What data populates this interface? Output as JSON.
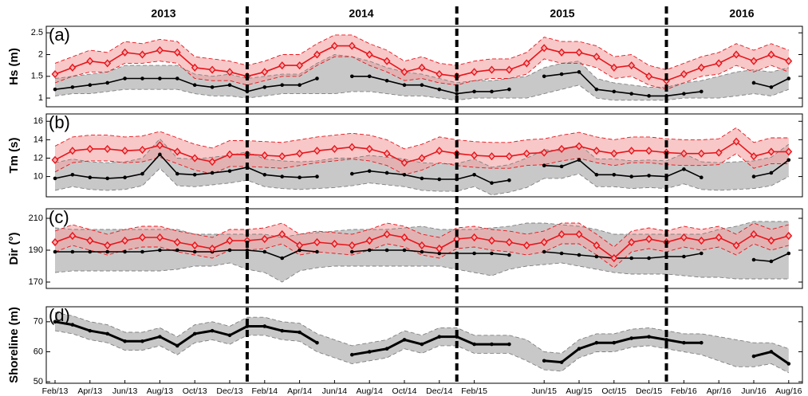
{
  "year_labels": [
    "2013",
    "2014",
    "2015",
    "2016"
  ],
  "chart_data": [
    {
      "type": "line",
      "ylabel": "Hs (m)",
      "panel_label": "(a)",
      "ylim": [
        0.8,
        2.65
      ],
      "yticks": [
        1,
        1.5,
        2,
        2.5
      ],
      "series": [
        {
          "color": "#808080",
          "band_color": "#c8c8c8",
          "marker": "circle",
          "line_color": "#000000",
          "values": [
            1.2,
            1.25,
            1.3,
            1.35,
            1.45,
            1.45,
            1.45,
            1.45,
            1.3,
            1.25,
            1.3,
            1.15,
            1.25,
            1.3,
            1.3,
            1.45,
            null,
            1.5,
            1.5,
            1.4,
            1.3,
            1.3,
            1.2,
            1.1,
            1.15,
            1.15,
            1.2,
            null,
            1.5,
            1.55,
            1.6,
            1.2,
            1.15,
            1.1,
            1.05,
            1.05,
            1.1,
            1.15,
            null,
            null,
            1.35,
            1.25,
            1.45
          ],
          "lower": [
            1.05,
            1.1,
            1.1,
            1.15,
            1.2,
            1.2,
            1.2,
            1.2,
            1.1,
            1.05,
            1.05,
            1.0,
            1.05,
            1.1,
            1.1,
            1.1,
            1.1,
            1.15,
            1.15,
            1.1,
            1.05,
            1.05,
            1.0,
            0.95,
            1.0,
            1.0,
            1.0,
            1.0,
            1.1,
            1.2,
            1.3,
            1.0,
            0.95,
            0.95,
            0.95,
            0.95,
            1.0,
            1.0,
            1.0,
            1.05,
            1.1,
            1.05,
            1.2
          ],
          "upper": [
            1.45,
            1.5,
            1.55,
            1.6,
            1.75,
            1.75,
            1.75,
            1.75,
            1.55,
            1.5,
            1.55,
            1.45,
            1.5,
            1.55,
            1.55,
            1.8,
            2.0,
            1.95,
            1.85,
            1.7,
            1.6,
            1.55,
            1.45,
            1.35,
            1.4,
            1.4,
            1.45,
            1.5,
            1.7,
            1.8,
            1.85,
            1.45,
            1.35,
            1.3,
            1.25,
            1.25,
            1.35,
            1.4,
            1.5,
            1.6,
            1.65,
            1.6,
            1.7
          ]
        },
        {
          "color": "#e8141b",
          "band_color": "#f4a3a3",
          "marker": "diamond",
          "line_color": "#e8141b",
          "values": [
            1.55,
            1.7,
            1.85,
            1.8,
            2.05,
            2.0,
            2.1,
            2.05,
            1.7,
            1.65,
            1.6,
            1.5,
            1.6,
            1.75,
            1.75,
            2.0,
            2.2,
            2.2,
            2.0,
            1.85,
            1.6,
            1.7,
            1.55,
            1.5,
            1.6,
            1.65,
            1.65,
            1.8,
            2.15,
            2.05,
            2.05,
            1.95,
            1.7,
            1.75,
            1.5,
            1.4,
            1.55,
            1.7,
            1.8,
            2.0,
            1.85,
            2.0,
            1.85
          ],
          "lower": [
            1.35,
            1.5,
            1.6,
            1.6,
            1.8,
            1.8,
            1.85,
            1.8,
            1.45,
            1.4,
            1.4,
            1.3,
            1.4,
            1.5,
            1.5,
            1.75,
            1.95,
            1.95,
            1.75,
            1.6,
            1.4,
            1.45,
            1.35,
            1.3,
            1.4,
            1.45,
            1.45,
            1.55,
            1.9,
            1.8,
            1.8,
            1.7,
            1.45,
            1.5,
            1.3,
            1.2,
            1.35,
            1.5,
            1.55,
            1.75,
            1.6,
            1.75,
            1.6
          ],
          "upper": [
            1.8,
            1.95,
            2.1,
            2.05,
            2.3,
            2.25,
            2.35,
            2.3,
            1.95,
            1.9,
            1.85,
            1.75,
            1.85,
            2.0,
            2.0,
            2.25,
            2.45,
            2.45,
            2.25,
            2.1,
            1.85,
            1.95,
            1.8,
            1.75,
            1.85,
            1.9,
            1.9,
            2.05,
            2.4,
            2.3,
            2.3,
            2.2,
            1.95,
            2.0,
            1.75,
            1.65,
            1.8,
            1.95,
            2.05,
            2.25,
            2.1,
            2.25,
            2.1
          ]
        }
      ]
    },
    {
      "type": "line",
      "ylabel": "Tm (s)",
      "panel_label": "(b)",
      "ylim": [
        7.8,
        16.8
      ],
      "yticks": [
        10,
        12,
        14,
        16
      ],
      "series": [
        {
          "color": "#808080",
          "band_color": "#c8c8c8",
          "marker": "circle",
          "line_color": "#000000",
          "values": [
            9.8,
            10.2,
            9.9,
            9.8,
            9.9,
            10.3,
            12.4,
            10.3,
            10.2,
            10.4,
            10.6,
            11.0,
            10.2,
            10.0,
            9.9,
            10.0,
            null,
            10.3,
            10.6,
            10.4,
            10.2,
            9.8,
            9.7,
            9.7,
            10.2,
            9.3,
            9.6,
            null,
            11.2,
            11.1,
            11.8,
            10.2,
            10.2,
            10.0,
            10.1,
            10.0,
            10.8,
            9.9,
            null,
            null,
            10.0,
            10.4,
            11.8
          ],
          "lower": [
            8.5,
            8.9,
            8.6,
            8.5,
            8.6,
            9.0,
            10.9,
            9.0,
            8.9,
            9.1,
            9.3,
            9.6,
            8.9,
            8.7,
            8.6,
            8.7,
            8.8,
            9.0,
            9.3,
            9.1,
            8.9,
            8.5,
            8.4,
            8.4,
            8.9,
            8.0,
            8.3,
            8.8,
            9.8,
            9.8,
            10.3,
            8.9,
            8.9,
            8.7,
            8.8,
            8.7,
            9.2,
            8.6,
            8.5,
            8.6,
            8.7,
            9.0,
            10.0
          ],
          "upper": [
            11.5,
            11.9,
            11.6,
            11.5,
            11.6,
            12.0,
            14.1,
            12.0,
            11.9,
            12.1,
            12.3,
            12.7,
            11.9,
            11.7,
            11.6,
            11.7,
            12.0,
            12.0,
            12.3,
            12.1,
            11.9,
            11.5,
            11.4,
            11.4,
            11.9,
            11.0,
            11.3,
            12.0,
            12.9,
            12.8,
            13.5,
            11.9,
            11.9,
            11.7,
            11.8,
            11.7,
            12.5,
            11.6,
            11.5,
            11.6,
            11.7,
            12.1,
            13.5
          ]
        },
        {
          "color": "#e8141b",
          "band_color": "#f4a3a3",
          "marker": "diamond",
          "line_color": "#e8141b",
          "values": [
            11.8,
            12.8,
            13,
            13,
            12.8,
            12.9,
            13.4,
            12.7,
            12,
            11.6,
            12.4,
            12.4,
            12.3,
            12.2,
            12.5,
            12.8,
            13,
            13.2,
            13,
            12.5,
            11.5,
            12,
            12.8,
            12.5,
            12.3,
            12.2,
            12.2,
            12.5,
            12.6,
            13,
            13.3,
            12.8,
            12.5,
            12.8,
            12.8,
            12.6,
            12.5,
            12.5,
            12.6,
            13.8,
            12.2,
            12.7,
            12.7
          ],
          "lower": [
            10.5,
            11.5,
            11.7,
            11.7,
            11.5,
            11.6,
            12.1,
            11.4,
            10.7,
            10.3,
            11.1,
            11.1,
            11.0,
            10.9,
            11.2,
            11.5,
            11.7,
            11.9,
            11.7,
            11.2,
            10.2,
            10.7,
            11.5,
            11.2,
            11.0,
            10.9,
            10.9,
            11.2,
            11.3,
            11.7,
            12.0,
            11.5,
            11.2,
            11.5,
            11.5,
            11.3,
            11.2,
            11.2,
            11.3,
            12.5,
            10.9,
            11.4,
            11.4
          ],
          "upper": [
            13.3,
            14.3,
            14.5,
            14.5,
            14.3,
            14.4,
            14.9,
            14.2,
            13.5,
            13.1,
            13.9,
            13.9,
            13.8,
            13.7,
            14.0,
            14.3,
            14.5,
            14.7,
            14.5,
            14.0,
            13.0,
            13.5,
            14.3,
            14.0,
            13.8,
            13.7,
            13.7,
            14.0,
            14.1,
            14.5,
            14.8,
            14.3,
            14.0,
            14.3,
            14.3,
            14.1,
            14.0,
            14.0,
            14.1,
            15.3,
            13.7,
            14.2,
            14.2
          ]
        }
      ]
    },
    {
      "type": "line",
      "ylabel": "Dir (°)",
      "panel_label": "(c)",
      "ylim": [
        166,
        216
      ],
      "yticks": [
        170,
        190,
        210
      ],
      "series": [
        {
          "color": "#808080",
          "band_color": "#c8c8c8",
          "marker": "circle",
          "line_color": "#000000",
          "values": [
            189,
            189,
            189,
            189,
            189,
            189,
            190,
            190,
            189,
            189,
            190,
            190,
            189,
            185,
            190,
            189,
            null,
            189,
            190,
            190,
            190,
            189,
            188,
            188,
            188,
            188,
            187,
            null,
            189,
            188,
            187,
            186,
            185,
            185,
            185,
            186,
            186,
            188,
            null,
            null,
            184,
            183,
            188
          ],
          "lower": [
            176,
            177,
            177,
            177,
            177,
            177,
            177,
            178,
            180,
            180,
            182,
            178,
            176,
            170,
            177,
            179,
            180,
            180,
            180,
            180,
            180,
            180,
            180,
            178,
            176,
            174,
            178,
            180,
            181,
            182,
            180,
            178,
            176,
            175,
            175,
            175,
            174,
            173,
            173,
            172,
            172,
            172,
            172
          ],
          "upper": [
            204,
            203,
            203,
            203,
            203,
            203,
            203,
            203,
            200,
            200,
            200,
            200,
            200,
            198,
            200,
            201,
            202,
            203,
            203,
            203,
            204,
            205,
            203,
            203,
            203,
            204,
            205,
            207,
            207,
            206,
            205,
            203,
            200,
            200,
            200,
            200,
            200,
            200,
            203,
            205,
            208,
            208,
            208
          ]
        },
        {
          "color": "#e8141b",
          "band_color": "#f4a3a3",
          "marker": "diamond",
          "line_color": "#e8141b",
          "values": [
            195,
            199,
            196,
            193,
            196,
            198,
            198,
            195,
            193,
            191,
            196,
            196,
            197,
            200,
            193,
            195,
            194,
            193,
            196,
            200,
            198,
            193,
            191,
            197,
            198,
            196,
            195,
            193,
            195,
            200,
            200,
            193,
            185,
            195,
            197,
            195,
            198,
            196,
            198,
            193,
            200,
            196,
            199
          ],
          "lower": [
            189,
            193,
            190,
            187,
            190,
            192,
            192,
            189,
            187,
            185,
            190,
            190,
            191,
            194,
            187,
            189,
            188,
            187,
            190,
            194,
            192,
            187,
            185,
            191,
            192,
            190,
            189,
            187,
            189,
            194,
            194,
            187,
            179,
            189,
            191,
            189,
            192,
            190,
            192,
            187,
            194,
            190,
            193
          ],
          "upper": [
            202,
            206,
            203,
            200,
            203,
            205,
            205,
            202,
            200,
            198,
            203,
            203,
            204,
            207,
            200,
            202,
            201,
            200,
            203,
            207,
            205,
            200,
            198,
            204,
            205,
            203,
            202,
            200,
            202,
            207,
            207,
            200,
            192,
            202,
            204,
            202,
            205,
            203,
            205,
            200,
            207,
            203,
            206
          ]
        }
      ]
    },
    {
      "type": "line",
      "ylabel": "Shoreline (m)",
      "panel_label": "(d)",
      "ylim": [
        49.5,
        75
      ],
      "yticks": [
        50,
        60,
        70
      ],
      "categories": [
        "Feb/13",
        null,
        "Apr/13",
        null,
        "Jun/13",
        null,
        "Aug/13",
        null,
        "Oct/13",
        null,
        "Dec/13",
        null,
        "Feb/14",
        null,
        "Apr/14",
        null,
        "Jun/14",
        null,
        "Aug/14",
        null,
        "Oct/14",
        null,
        "Dec/14",
        null,
        "Feb/15",
        null,
        null,
        null,
        "Jun/15",
        null,
        "Aug/15",
        null,
        "Oct/15",
        null,
        "Dec/15",
        null,
        "Feb/16",
        null,
        "Apr/16",
        null,
        "Jun/16",
        null,
        "Aug/16"
      ],
      "series": [
        {
          "color": "#808080",
          "band_color": "#c8c8c8",
          "marker": "circle",
          "line_color": "#000000",
          "line_width": 3,
          "values": [
            70,
            69,
            67,
            66,
            63.5,
            63.5,
            65,
            62,
            66,
            67,
            65.5,
            68.5,
            68.5,
            67,
            66.5,
            63,
            null,
            59,
            60,
            61,
            64,
            62.5,
            65,
            65,
            62.5,
            62.5,
            62.5,
            null,
            57,
            56.5,
            61,
            63,
            63,
            64.5,
            65,
            64,
            63,
            63,
            null,
            null,
            58.5,
            60,
            56
          ],
          "lower": [
            67,
            66,
            64,
            63,
            60.5,
            60.5,
            62,
            59,
            63,
            64,
            62.5,
            65.5,
            65.5,
            64,
            63.5,
            60,
            58,
            56,
            57,
            58,
            61,
            59.5,
            62,
            62,
            59.5,
            59.5,
            59.5,
            57,
            54,
            53.5,
            58,
            60,
            60,
            61.5,
            62,
            61,
            60,
            59,
            57,
            55,
            55,
            56,
            53
          ],
          "upper": [
            73,
            72,
            70,
            69,
            66.5,
            66.5,
            68,
            65,
            69,
            70,
            68.5,
            71.5,
            71.5,
            70,
            69.5,
            66,
            64,
            62,
            63,
            64,
            67,
            65.5,
            68,
            68,
            65.5,
            65.5,
            65.5,
            64,
            60,
            59.5,
            64,
            66,
            66,
            67.5,
            68,
            67,
            66,
            66,
            65,
            64,
            63,
            63,
            61
          ]
        }
      ]
    }
  ]
}
